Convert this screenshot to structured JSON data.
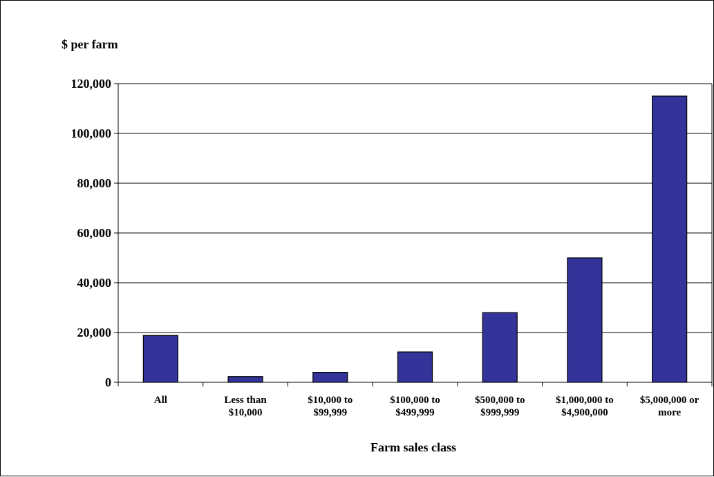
{
  "chart_data": {
    "type": "bar",
    "title": "",
    "ylabel": "$ per farm",
    "xlabel": "Farm sales class",
    "categories": [
      [
        "All"
      ],
      [
        "Less than",
        "$10,000"
      ],
      [
        "$10,000 to",
        "$99,999"
      ],
      [
        "$100,000 to",
        "$499,999"
      ],
      [
        "$500,000 to",
        "$999,999"
      ],
      [
        "$1,000,000 to",
        "$4,900,000"
      ],
      [
        "$5,000,000 or",
        "more"
      ]
    ],
    "values": [
      18800,
      2300,
      4000,
      12200,
      28000,
      50000,
      115000
    ],
    "ylim": [
      0,
      120000
    ],
    "yticks": [
      0,
      20000,
      40000,
      60000,
      80000,
      100000,
      120000
    ],
    "ytick_labels": [
      "0",
      "20,000",
      "40,000",
      "60,000",
      "80,000",
      "100,000",
      "120,000"
    ],
    "grid": true,
    "legend": "none",
    "colors": {
      "bar": "#333399",
      "bar_edge": "#000000",
      "grid": "#000000"
    }
  }
}
